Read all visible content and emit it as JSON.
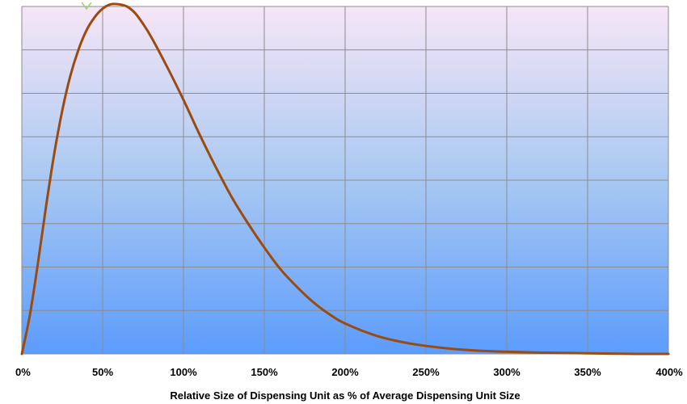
{
  "chart_data": {
    "type": "line",
    "title": "",
    "xlabel": "Relative Size of Dispensing Unit as % of Average Dispensing Unit Size",
    "ylabel": "",
    "x_unit": "%",
    "xlim": [
      0,
      400
    ],
    "x_ticks": [
      "0%",
      "50%",
      "100%",
      "150%",
      "200%",
      "250%",
      "300%",
      "350%",
      "400%"
    ],
    "y_ticks_shown": false,
    "ylim": [
      0,
      8
    ],
    "grid": true,
    "legend": "none",
    "colors": {
      "line": "#9b4a10",
      "grid": "#8c8c8c",
      "background_top": "#f6e6f6",
      "background_bottom": "#5c9cfc",
      "marker": "#9ed36a"
    },
    "series": [
      {
        "x": [
          0,
          5,
          10,
          15,
          20,
          25,
          30,
          35,
          40,
          45,
          50,
          55,
          60,
          65,
          70,
          75,
          80,
          90,
          100,
          110,
          120,
          130,
          140,
          150,
          160,
          170,
          180,
          190,
          200,
          220,
          240,
          260,
          280,
          300,
          320,
          340,
          360,
          380,
          400
        ],
        "values": [
          0.0,
          0.9,
          2.1,
          3.4,
          4.6,
          5.6,
          6.4,
          7.0,
          7.45,
          7.75,
          7.95,
          8.05,
          8.05,
          8.0,
          7.85,
          7.6,
          7.3,
          6.6,
          5.85,
          5.05,
          4.3,
          3.6,
          3.0,
          2.45,
          1.95,
          1.55,
          1.2,
          0.92,
          0.7,
          0.41,
          0.24,
          0.14,
          0.08,
          0.05,
          0.03,
          0.02,
          0.01,
          0.0,
          0.0
        ]
      }
    ]
  }
}
